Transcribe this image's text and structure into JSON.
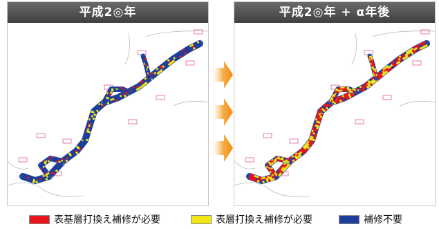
{
  "panels": {
    "left": {
      "title": "平成2◎年"
    },
    "right": {
      "title": "平成2◎年 + α年後"
    }
  },
  "colors": {
    "red": "#e8141c",
    "yellow": "#f2e616",
    "blue": "#1f3e9a",
    "arrow": "#f39a1e"
  },
  "legend": [
    {
      "label": "表基層打換え補修が必要",
      "color": "#e8141c"
    },
    {
      "label": "表層打換え補修が必要",
      "color": "#f2e616"
    },
    {
      "label": "補修不要",
      "color": "#1f3e9a"
    }
  ],
  "mix": {
    "left": {
      "blue": 0.72,
      "yellow": 0.18,
      "red": 0.1
    },
    "right": {
      "blue": 0.1,
      "yellow": 0.38,
      "red": 0.52
    }
  }
}
